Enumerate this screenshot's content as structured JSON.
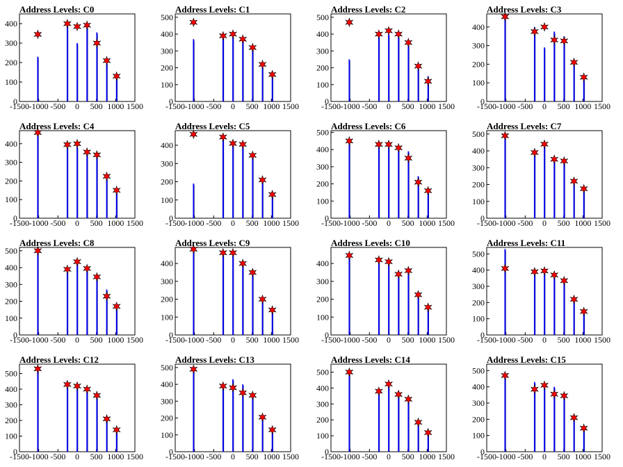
{
  "figure": {
    "colors": {
      "bar": "#0000ff",
      "marker": "#ff0000",
      "axis": "#000000",
      "background": "#ffffff"
    }
  },
  "chart_data": [
    {
      "title": "Address Levels: C0",
      "type": "bar",
      "xlim": [
        -1500,
        1500
      ],
      "ylim": [
        0,
        450
      ],
      "xticks": [
        -1500,
        -1000,
        -500,
        0,
        500,
        1000,
        1500
      ],
      "yticks": [
        0,
        100,
        200,
        300,
        400
      ],
      "x": [
        -1024,
        -256,
        0,
        256,
        512,
        768,
        1024
      ],
      "values": [
        230,
        395,
        300,
        400,
        355,
        200,
        140
      ],
      "markers": [
        345,
        400,
        385,
        392,
        300,
        210,
        130
      ]
    },
    {
      "title": "Address Levels: C1",
      "type": "bar",
      "xlim": [
        -1500,
        1500
      ],
      "ylim": [
        0,
        520
      ],
      "xticks": [
        -1500,
        -1000,
        -500,
        0,
        500,
        1000,
        1500
      ],
      "yticks": [
        0,
        100,
        200,
        300,
        400,
        500
      ],
      "x": [
        -1024,
        -256,
        0,
        256,
        512,
        768,
        1024
      ],
      "values": [
        370,
        390,
        390,
        380,
        320,
        210,
        150
      ],
      "markers": [
        470,
        390,
        400,
        370,
        320,
        220,
        160
      ]
    },
    {
      "title": "Address Levels: C2",
      "type": "bar",
      "xlim": [
        -1500,
        1500
      ],
      "ylim": [
        0,
        520
      ],
      "xticks": [
        -1500,
        -1000,
        -500,
        0,
        500,
        1000,
        1500
      ],
      "yticks": [
        0,
        100,
        200,
        300,
        400,
        500
      ],
      "x": [
        -1024,
        -256,
        0,
        256,
        512,
        768,
        1024
      ],
      "values": [
        250,
        390,
        400,
        390,
        340,
        200,
        150
      ],
      "markers": [
        470,
        400,
        420,
        400,
        350,
        210,
        120
      ]
    },
    {
      "title": "Address Levels: C3",
      "type": "bar",
      "xlim": [
        -1500,
        1500
      ],
      "ylim": [
        0,
        470
      ],
      "xticks": [
        -1500,
        -1000,
        -500,
        0,
        500,
        1000,
        1500
      ],
      "yticks": [
        0,
        100,
        200,
        300,
        400
      ],
      "x": [
        -1024,
        -256,
        0,
        256,
        512,
        768,
        1024
      ],
      "values": [
        455,
        400,
        290,
        375,
        350,
        220,
        120
      ],
      "markers": [
        455,
        375,
        400,
        330,
        325,
        210,
        130
      ]
    },
    {
      "title": "Address Levels: C4",
      "type": "bar",
      "xlim": [
        -1500,
        1500
      ],
      "ylim": [
        0,
        470
      ],
      "xticks": [
        -1500,
        -1000,
        -500,
        0,
        500,
        1000,
        1500
      ],
      "yticks": [
        0,
        100,
        200,
        300,
        400
      ],
      "x": [
        -1024,
        -256,
        0,
        256,
        512,
        768,
        1024
      ],
      "values": [
        460,
        390,
        385,
        360,
        340,
        215,
        140
      ],
      "markers": [
        460,
        395,
        400,
        355,
        340,
        225,
        150
      ]
    },
    {
      "title": "Address Levels: C5",
      "type": "bar",
      "xlim": [
        -1500,
        1500
      ],
      "ylim": [
        0,
        480
      ],
      "xticks": [
        -1500,
        -1000,
        -500,
        0,
        500,
        1000,
        1500
      ],
      "yticks": [
        0,
        100,
        200,
        300,
        400
      ],
      "x": [
        -1024,
        -256,
        0,
        256,
        512,
        768,
        1024
      ],
      "values": [
        190,
        440,
        410,
        400,
        340,
        210,
        140
      ],
      "markers": [
        460,
        445,
        410,
        405,
        345,
        210,
        130
      ]
    },
    {
      "title": "Address Levels: C6",
      "type": "bar",
      "xlim": [
        -1500,
        1500
      ],
      "ylim": [
        0,
        510
      ],
      "xticks": [
        -1500,
        -1000,
        -500,
        0,
        500,
        1000,
        1500
      ],
      "yticks": [
        0,
        100,
        200,
        300,
        400,
        500
      ],
      "x": [
        -1024,
        -256,
        0,
        256,
        512,
        768,
        1024
      ],
      "values": [
        450,
        430,
        430,
        410,
        390,
        245,
        170
      ],
      "markers": [
        450,
        430,
        430,
        410,
        350,
        210,
        160
      ]
    },
    {
      "title": "Address Levels: C7",
      "type": "bar",
      "xlim": [
        -1500,
        1500
      ],
      "ylim": [
        0,
        520
      ],
      "xticks": [
        -1500,
        -1000,
        -500,
        0,
        500,
        1000,
        1500
      ],
      "yticks": [
        0,
        100,
        200,
        300,
        400,
        500
      ],
      "x": [
        -1024,
        -256,
        0,
        256,
        512,
        768,
        1024
      ],
      "values": [
        490,
        410,
        440,
        350,
        340,
        210,
        170
      ],
      "markers": [
        490,
        390,
        440,
        350,
        340,
        220,
        175
      ]
    },
    {
      "title": "Address Levels: C8",
      "type": "bar",
      "xlim": [
        -1500,
        1500
      ],
      "ylim": [
        0,
        520
      ],
      "xticks": [
        -1500,
        -1000,
        -500,
        0,
        500,
        1000,
        1500
      ],
      "yticks": [
        0,
        100,
        200,
        300,
        400,
        500
      ],
      "x": [
        -1024,
        -256,
        0,
        256,
        512,
        768,
        1024
      ],
      "values": [
        500,
        380,
        430,
        400,
        340,
        270,
        160
      ],
      "markers": [
        500,
        390,
        435,
        395,
        345,
        230,
        170
      ]
    },
    {
      "title": "Address Levels: C9",
      "type": "bar",
      "xlim": [
        -1500,
        1500
      ],
      "ylim": [
        0,
        490
      ],
      "xticks": [
        -1500,
        -1000,
        -500,
        0,
        500,
        1000,
        1500
      ],
      "yticks": [
        0,
        100,
        200,
        300,
        400
      ],
      "x": [
        -1024,
        -256,
        0,
        256,
        512,
        768,
        1024
      ],
      "values": [
        480,
        460,
        460,
        400,
        350,
        210,
        140
      ],
      "markers": [
        480,
        460,
        460,
        400,
        350,
        200,
        140
      ]
    },
    {
      "title": "Address Levels: C10",
      "type": "bar",
      "xlim": [
        -1500,
        1500
      ],
      "ylim": [
        0,
        490
      ],
      "xticks": [
        -1500,
        -1000,
        -500,
        0,
        500,
        1000,
        1500
      ],
      "yticks": [
        0,
        100,
        200,
        300,
        400
      ],
      "x": [
        -1024,
        -256,
        0,
        256,
        512,
        768,
        1024
      ],
      "values": [
        440,
        410,
        410,
        360,
        360,
        220,
        160
      ],
      "markers": [
        445,
        420,
        410,
        340,
        360,
        225,
        155
      ]
    },
    {
      "title": "Address Levels: C11",
      "type": "bar",
      "xlim": [
        -1500,
        1500
      ],
      "ylim": [
        0,
        540
      ],
      "xticks": [
        -1500,
        -1000,
        -500,
        0,
        500,
        1000,
        1500
      ],
      "yticks": [
        0,
        100,
        200,
        300,
        400,
        500
      ],
      "x": [
        -1024,
        -256,
        0,
        256,
        512,
        768,
        1024
      ],
      "values": [
        530,
        400,
        410,
        370,
        350,
        220,
        150
      ],
      "markers": [
        410,
        390,
        395,
        370,
        335,
        220,
        145
      ]
    },
    {
      "title": "Address Levels: C12",
      "type": "bar",
      "xlim": [
        -1500,
        1500
      ],
      "ylim": [
        0,
        560
      ],
      "xticks": [
        -1500,
        -1000,
        -500,
        0,
        500,
        1000,
        1500
      ],
      "yticks": [
        0,
        100,
        200,
        300,
        400,
        500
      ],
      "x": [
        -1024,
        -256,
        0,
        256,
        512,
        768,
        1024
      ],
      "values": [
        530,
        420,
        430,
        390,
        350,
        220,
        150
      ],
      "markers": [
        530,
        430,
        420,
        400,
        360,
        210,
        140
      ]
    },
    {
      "title": "Address Levels: C13",
      "type": "bar",
      "xlim": [
        -1500,
        1500
      ],
      "ylim": [
        0,
        520
      ],
      "xticks": [
        -1500,
        -1000,
        -500,
        0,
        500,
        1000,
        1500
      ],
      "yticks": [
        0,
        100,
        200,
        300,
        400,
        500
      ],
      "x": [
        -1024,
        -256,
        0,
        256,
        512,
        768,
        1024
      ],
      "values": [
        490,
        400,
        430,
        400,
        340,
        200,
        140
      ],
      "markers": [
        490,
        390,
        380,
        350,
        335,
        205,
        130
      ]
    },
    {
      "title": "Address Levels: C14",
      "type": "bar",
      "xlim": [
        -1500,
        1500
      ],
      "ylim": [
        0,
        550
      ],
      "xticks": [
        -1500,
        -1000,
        -500,
        0,
        500,
        1000,
        1500
      ],
      "yticks": [
        0,
        100,
        200,
        300,
        400,
        500
      ],
      "x": [
        -1024,
        -256,
        0,
        256,
        512,
        768,
        1024
      ],
      "values": [
        500,
        390,
        430,
        380,
        340,
        200,
        140
      ],
      "markers": [
        500,
        380,
        425,
        360,
        330,
        185,
        120
      ]
    },
    {
      "title": "Address Levels: C15",
      "type": "bar",
      "xlim": [
        -1500,
        1500
      ],
      "ylim": [
        0,
        540
      ],
      "xticks": [
        -1500,
        -1000,
        -500,
        0,
        500,
        1000,
        1500
      ],
      "yticks": [
        0,
        100,
        200,
        300,
        400,
        500
      ],
      "x": [
        -1024,
        -256,
        0,
        256,
        512,
        768,
        1024
      ],
      "values": [
        480,
        430,
        420,
        400,
        350,
        215,
        150
      ],
      "markers": [
        470,
        385,
        410,
        355,
        345,
        210,
        145
      ]
    }
  ]
}
